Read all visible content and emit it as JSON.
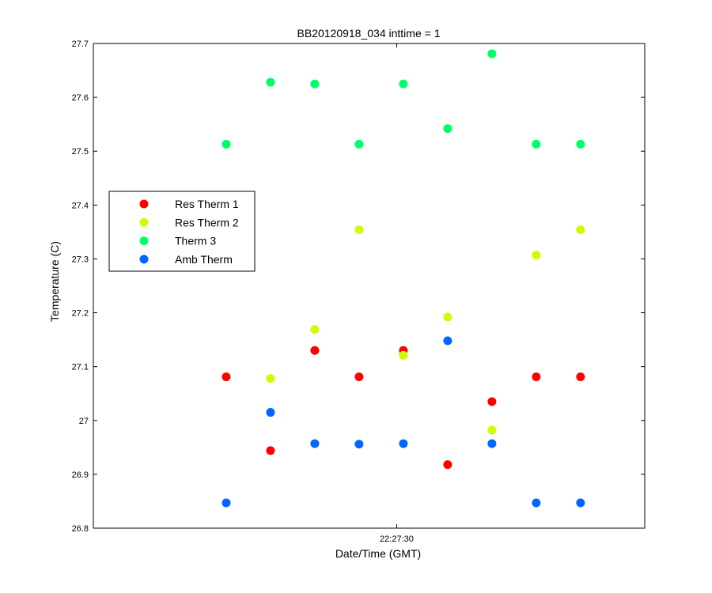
{
  "chart_data": {
    "type": "scatter",
    "title": "BB20120918_034 inttime = 1",
    "xlabel": "Date/Time (GMT)",
    "ylabel": "Temperature (C)",
    "ylim": [
      26.8,
      27.7
    ],
    "y_ticks": [
      "26.8",
      "26.9",
      "27",
      "27.1",
      "27.2",
      "27.3",
      "27.4",
      "27.5",
      "27.6",
      "27.7"
    ],
    "x_ticks": [
      {
        "label": "22:27:30",
        "value": 6.85
      }
    ],
    "x": [
      3,
      4,
      5,
      6,
      7,
      8,
      9,
      10,
      11
    ],
    "xlim": [
      0,
      12.45
    ],
    "legend_position": "center-left",
    "grid": false,
    "series": [
      {
        "name": "Res Therm 1",
        "color": "#ff0000",
        "values": [
          27.081,
          26.944,
          27.13,
          27.081,
          27.13,
          26.918,
          27.035,
          27.081,
          27.081
        ]
      },
      {
        "name": "Res Therm 2",
        "color": "#ccff00",
        "values": [
          null,
          27.078,
          27.169,
          27.354,
          27.121,
          27.192,
          26.982,
          27.307,
          27.354
        ]
      },
      {
        "name": "Therm 3",
        "color": "#00ff66",
        "values": [
          27.513,
          27.628,
          27.625,
          27.513,
          27.625,
          27.542,
          27.681,
          27.513,
          27.513
        ]
      },
      {
        "name": "Amb Therm",
        "color": "#0066ff",
        "values": [
          26.847,
          27.015,
          26.957,
          26.956,
          26.957,
          27.148,
          26.957,
          26.847,
          26.847
        ]
      }
    ]
  }
}
